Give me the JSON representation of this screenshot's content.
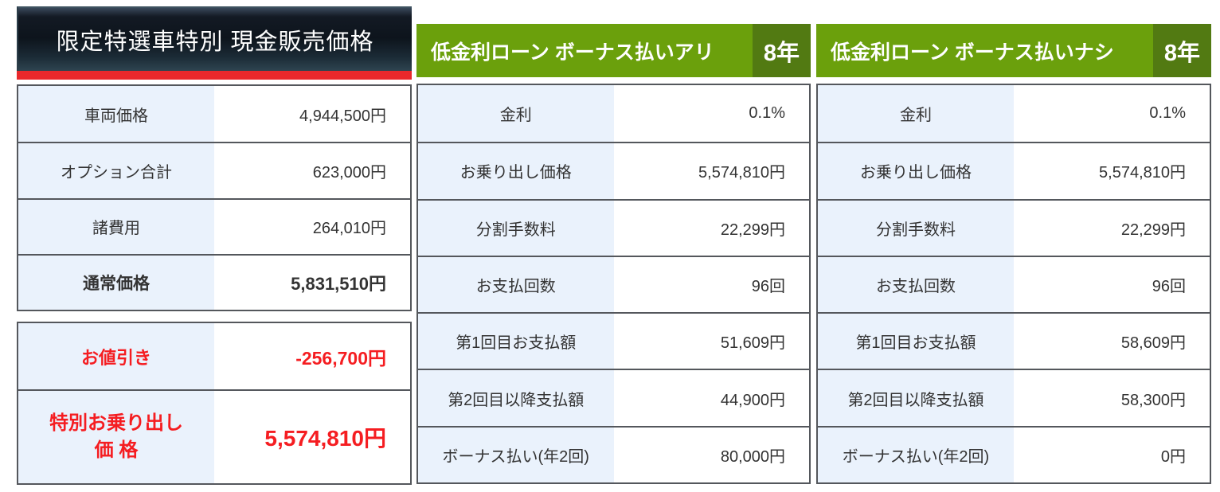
{
  "colors": {
    "accent_green": "#6ba00c",
    "accent_green_dark": "#527a12",
    "red_bar": "#e9282c",
    "accent_red": "#f51d21",
    "label_bg": "#eaf2fc",
    "border": "#54575c",
    "text": "#333333",
    "header_dark_top": "#0d141c",
    "header_dark_bottom": "#2e4450"
  },
  "cash_panel": {
    "title": "限定特選車特別 現金販売価格",
    "rows": [
      {
        "label": "車両価格",
        "value": "4,944,500円"
      },
      {
        "label": "オプション合計",
        "value": "623,000円"
      },
      {
        "label": "諸費用",
        "value": "264,010円"
      },
      {
        "label": "通常価格",
        "value": "5,831,510円"
      }
    ],
    "discount_row": {
      "label": "お値引き",
      "value": "-256,700円"
    },
    "special_row": {
      "label_line1": "特別お乗り出し",
      "label_line2": "価 格",
      "value": "5,574,810円"
    }
  },
  "loan_panels": [
    {
      "title": "低金利ローン ボーナス払いアリ",
      "term": "8年",
      "rows": [
        {
          "label": "金利",
          "value": "0.1%"
        },
        {
          "label": "お乗り出し価格",
          "value": "5,574,810円"
        },
        {
          "label": "分割手数料",
          "value": "22,299円"
        },
        {
          "label": "お支払回数",
          "value": "96回"
        },
        {
          "label": "第1回目お支払額",
          "value": "51,609円"
        },
        {
          "label": "第2回目以降支払額",
          "value": "44,900円"
        },
        {
          "label": "ボーナス払い(年2回)",
          "value": "80,000円"
        }
      ]
    },
    {
      "title": "低金利ローン ボーナス払いナシ",
      "term": "8年",
      "rows": [
        {
          "label": "金利",
          "value": "0.1%"
        },
        {
          "label": "お乗り出し価格",
          "value": "5,574,810円"
        },
        {
          "label": "分割手数料",
          "value": "22,299円"
        },
        {
          "label": "お支払回数",
          "value": "96回"
        },
        {
          "label": "第1回目お支払額",
          "value": "58,609円"
        },
        {
          "label": "第2回目以降支払額",
          "value": "58,300円"
        },
        {
          "label": "ボーナス払い(年2回)",
          "value": "0円"
        }
      ]
    }
  ]
}
